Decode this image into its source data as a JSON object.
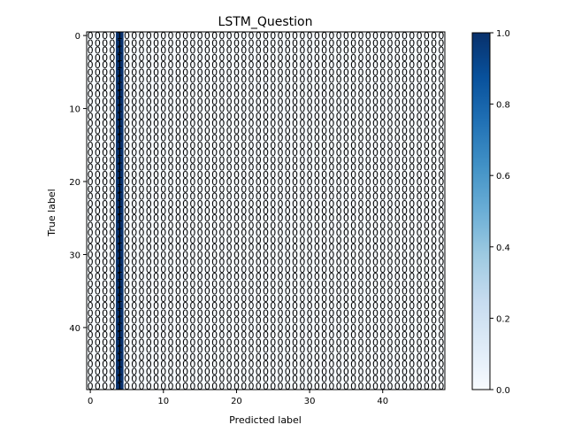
{
  "chart_data": {
    "type": "heatmap",
    "title": "LSTM_Question",
    "xlabel": "Predicted label",
    "ylabel": "True label",
    "n_classes": 49,
    "x_ticks": [
      0,
      10,
      20,
      30,
      40
    ],
    "y_ticks": [
      0,
      10,
      20,
      30,
      40
    ],
    "predicted_column": 4,
    "cell_value": "0",
    "predicted_cell_value": "1",
    "colormap": "Blues",
    "colorbar": {
      "range": [
        0.0,
        1.0
      ],
      "ticks": [
        "0.0",
        "0.2",
        "0.4",
        "0.6",
        "0.8",
        "1.0"
      ]
    },
    "colors": {
      "low": "#f7fbff",
      "high": "#08306b"
    }
  }
}
